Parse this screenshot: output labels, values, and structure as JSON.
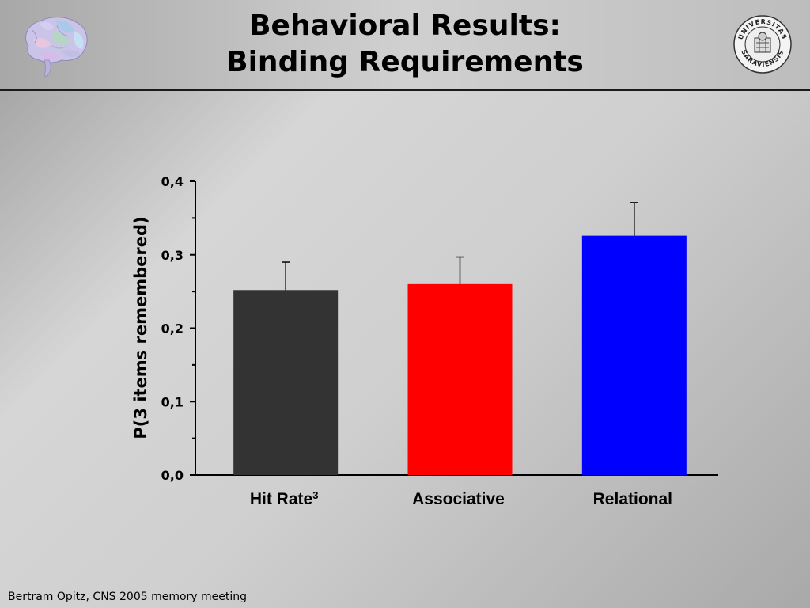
{
  "slide": {
    "title_line1": "Behavioral Results:",
    "title_line2": "Binding Requirements",
    "footer": "Bertram Opitz, CNS 2005 memory meeting",
    "logo_text": "UNIVERSITAS SARAVIENSIS",
    "brain_icon": "brain-illustration"
  },
  "chart_data": {
    "type": "bar",
    "title": "",
    "ylabel": "P(3 items remembered)",
    "xlabel": "",
    "ylim": [
      0,
      0.4
    ],
    "yticks": [
      "0,0",
      "0,1",
      "0,2",
      "0,3",
      "0,4"
    ],
    "categories": [
      "Hit Rate",
      "Associative",
      "Relational"
    ],
    "category_superscripts": [
      "3",
      "",
      ""
    ],
    "values": [
      0.252,
      0.26,
      0.326
    ],
    "error_upper": [
      0.29,
      0.297,
      0.371
    ],
    "colors": [
      "#333333",
      "#ff0000",
      "#0000ff"
    ],
    "grid": false,
    "legend": "none"
  }
}
